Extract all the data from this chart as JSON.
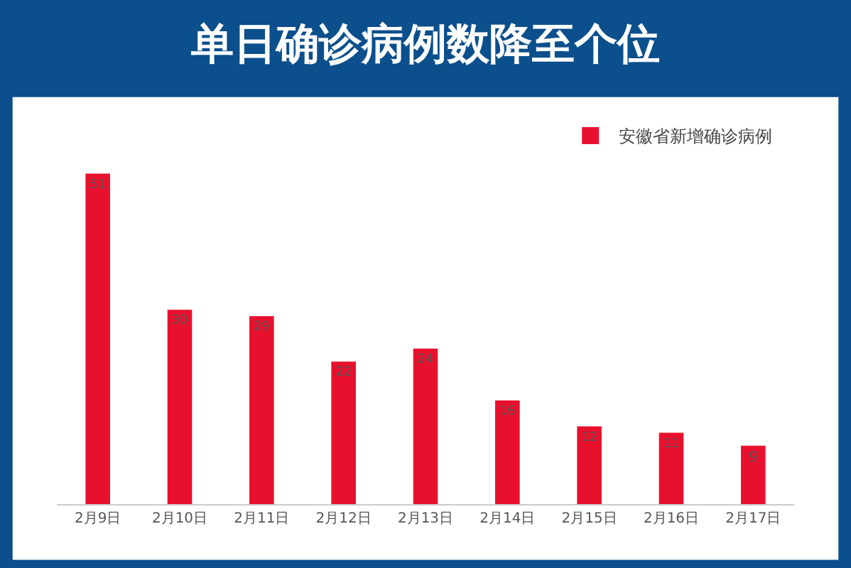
{
  "chart_data": {
    "type": "bar",
    "title": "单日确诊病例数降至个位",
    "categories": [
      "2月9日",
      "2月10日",
      "2月11日",
      "2月12日",
      "2月13日",
      "2月14日",
      "2月15日",
      "2月16日",
      "2月17日"
    ],
    "series": [
      {
        "name": "安徽省新增确诊病例",
        "color": "#e8112d",
        "values": [
          51,
          30,
          29,
          22,
          24,
          16,
          12,
          11,
          9
        ]
      }
    ],
    "data_labels": true,
    "legend": "top right",
    "tick_labels": "x",
    "grid": false
  }
}
